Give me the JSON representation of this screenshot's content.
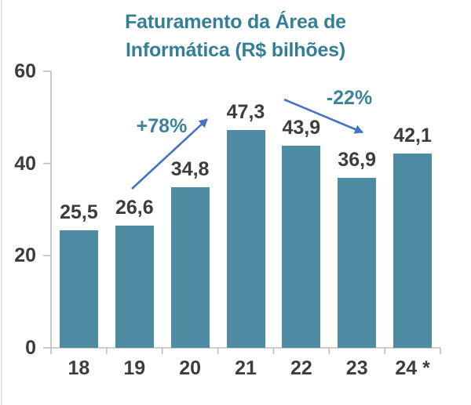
{
  "title": {
    "line1": "Faturamento da Área de",
    "line2": "Informática (R$ bilhões)"
  },
  "chart_data": {
    "type": "bar",
    "title": "Faturamento da Área de Informática (R$ bilhões)",
    "categories": [
      "18",
      "19",
      "20",
      "21",
      "22",
      "23",
      "24 *"
    ],
    "values": [
      25.5,
      26.6,
      34.8,
      47.3,
      43.9,
      36.9,
      42.1
    ],
    "value_labels": [
      "25,5",
      "26,6",
      "34,8",
      "47,3",
      "43,9",
      "36,9",
      "42,1"
    ],
    "xlabel": "",
    "ylabel": "",
    "ylim": [
      0,
      60
    ],
    "yticks": [
      0,
      20,
      40,
      60
    ],
    "grid": false,
    "legend": "none",
    "bar_color": "#4E8CA4",
    "annotations": [
      {
        "text": "+78%",
        "arrow": "up-right",
        "from_category": "19",
        "to_category": "21"
      },
      {
        "text": "-22%",
        "arrow": "down-right",
        "from_category": "21",
        "to_category": "23"
      }
    ]
  },
  "colors": {
    "title": "#337F95",
    "accent": "#3D8399",
    "bar": "#4E8CA4",
    "label": "#3D3D3D",
    "axis": "#BDBDBD",
    "arrow": "#4472C4",
    "background": "#FFFFFF",
    "edge": "#E6E6E6"
  }
}
